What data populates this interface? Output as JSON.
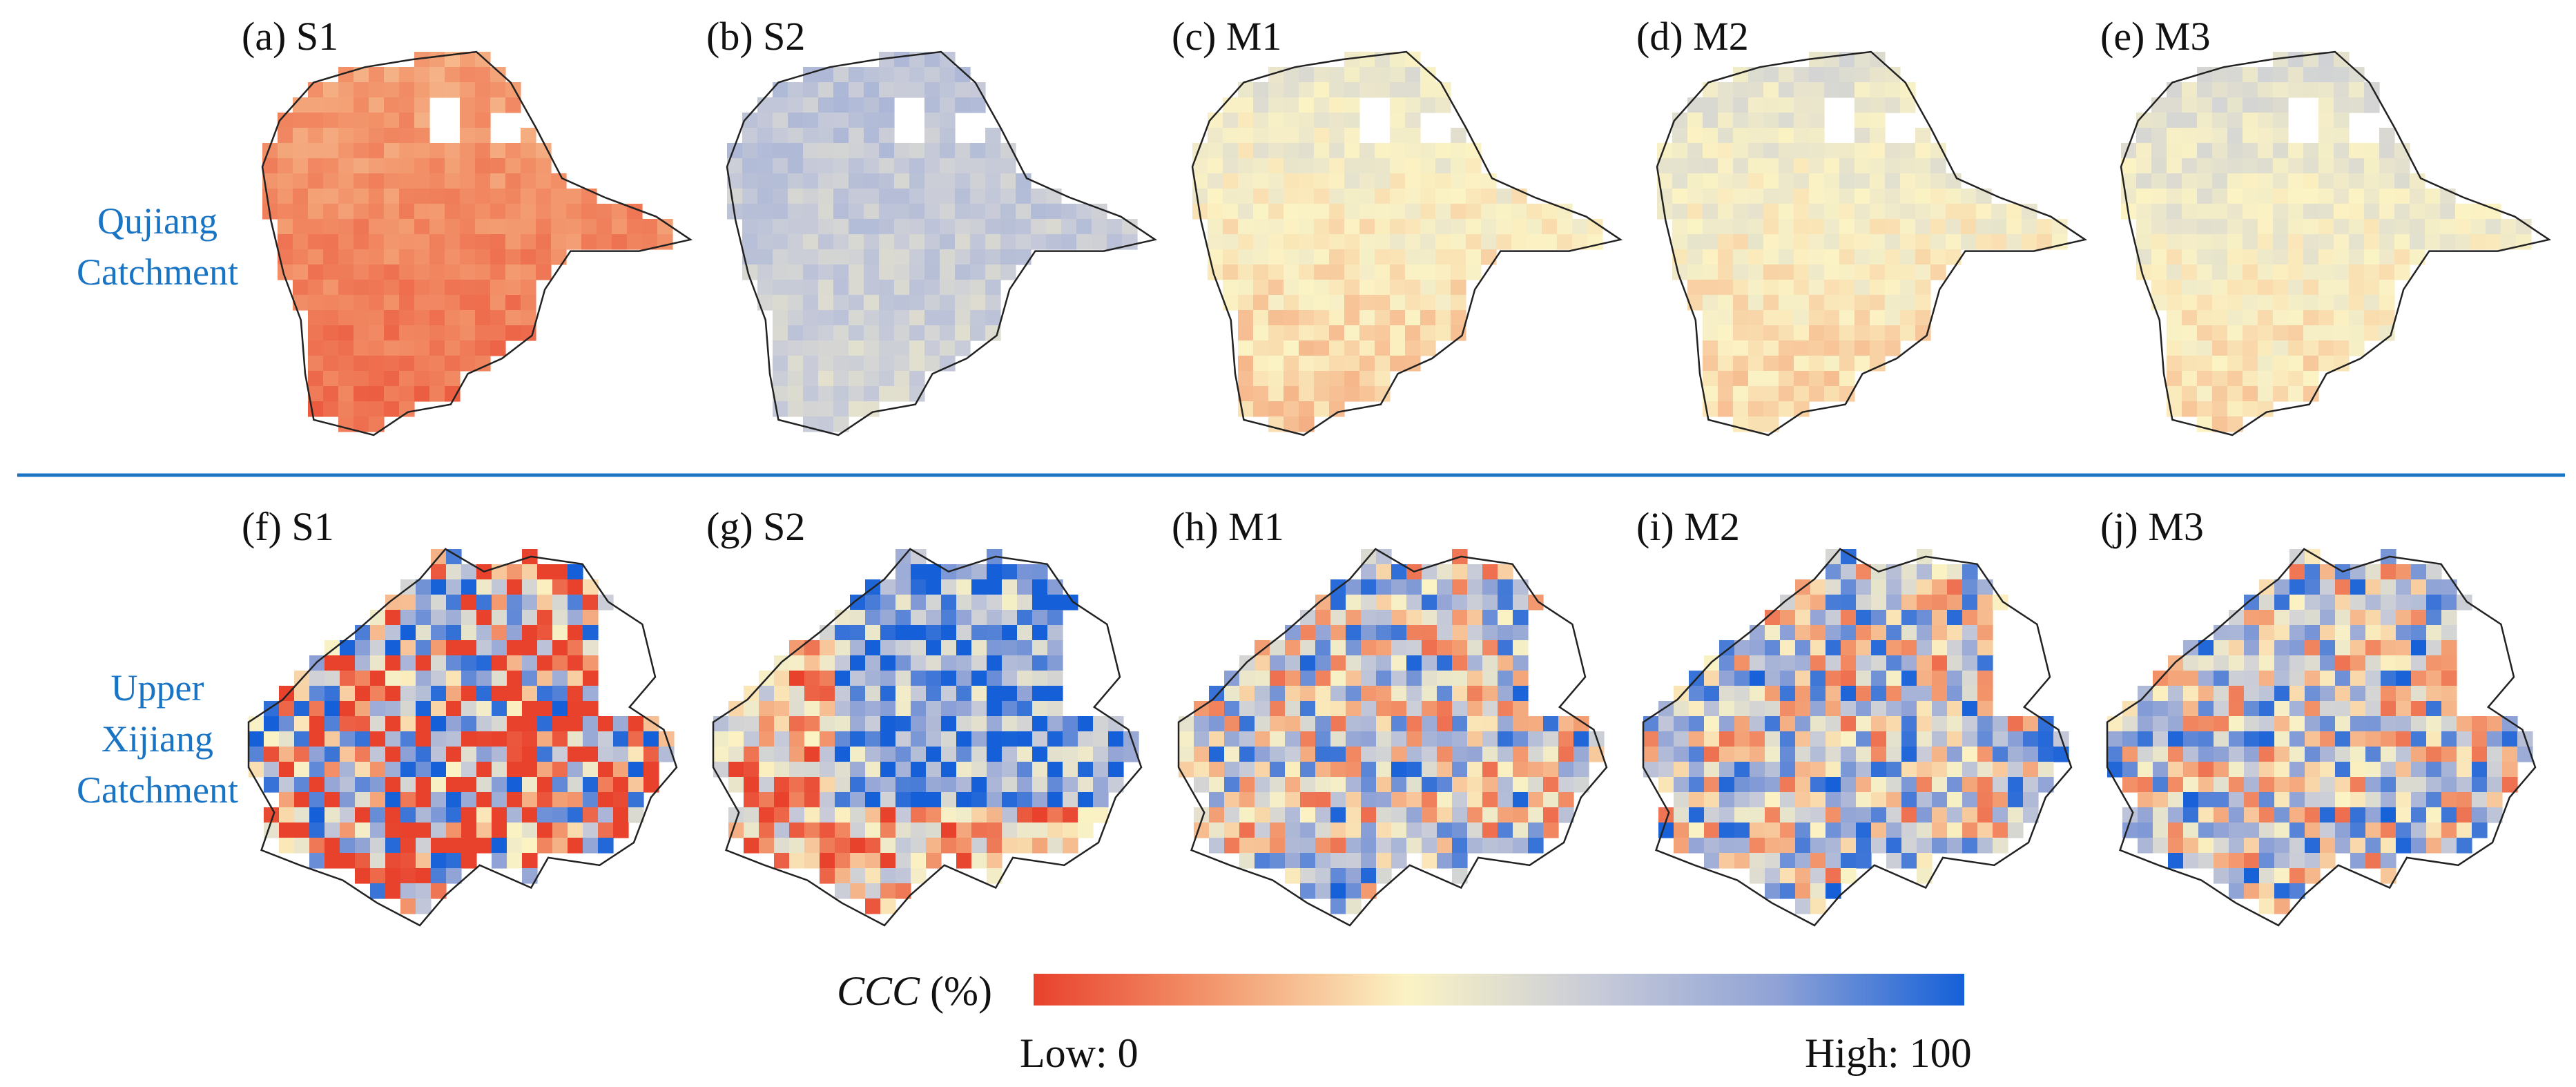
{
  "figure": {
    "rows": [
      {
        "label_lines": [
          "Qujiang",
          "Catchment"
        ],
        "panels": [
          "(a) S1",
          "(b) S2",
          "(c) M1",
          "(d) M2",
          "(e) M3"
        ]
      },
      {
        "label_lines": [
          "Upper",
          "Xijiang",
          "Catchment"
        ],
        "panels": [
          "(f) S1",
          "(g) S2",
          "(h) M1",
          "(i) M2",
          "(j) M3"
        ]
      }
    ],
    "colorbar": {
      "title_main": "CCC",
      "title_unit": " (%)",
      "low_label": "Low: 0",
      "high_label": "High: 100",
      "min": 0,
      "max": 100,
      "stops": [
        "#e8412c",
        "#f39a70",
        "#fbf3c4",
        "#c9ccd8",
        "#8fa2d6",
        "#1560d8"
      ]
    },
    "colors": {
      "row_label": "#1a74c4",
      "separator": "#1a74c4",
      "outline": "#222222"
    },
    "panel_means": {
      "qujiang": [
        22,
        65,
        48,
        50,
        52
      ],
      "upper_xijiang": [
        35,
        62,
        55,
        55,
        55
      ]
    }
  }
}
